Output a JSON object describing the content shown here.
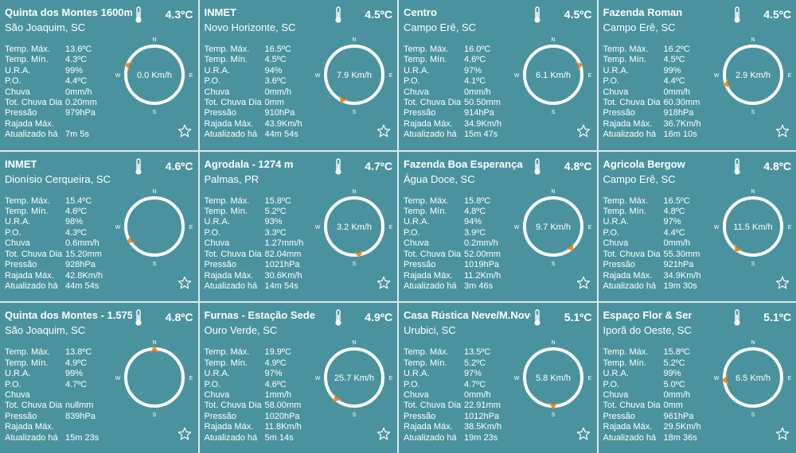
{
  "units": {
    "temp": "ºC"
  },
  "labels": {
    "tmax": "Temp. Máx.",
    "tmin": "Temp. Mín.",
    "ura": "U.R.A.",
    "po": "P.O.",
    "chuva": "Chuva",
    "chuva_dia": "Tot. Chuva Dia",
    "pressao": "Pressão",
    "rajada": "Rajada Máx.",
    "atualizado": "Atualizado há"
  },
  "compass_labels": {
    "n": "N",
    "s": "S",
    "e": "E",
    "w": "W"
  },
  "colors": {
    "card_bg": "#4a939e",
    "needle": "#f08a24"
  },
  "stations": [
    {
      "name": "Quinta dos Montes 1600m",
      "location": "São Joaquim, SC",
      "temp": "4.3",
      "tmax": "13.6ºC",
      "tmin": "4.3ºC",
      "ura": "99%",
      "po": "4.4ºC",
      "chuva": "0mm/h",
      "chuva_dia": "0.20mm",
      "pressao": "979hPa",
      "rajada": "",
      "atualizado": "7m 5s",
      "wind": "0.0 Km/h",
      "wind_dir_deg": 290
    },
    {
      "name": "INMET",
      "location": "Novo Horizonte, SC",
      "temp": "4.5",
      "tmax": "16.5ºC",
      "tmin": "4.5ºC",
      "ura": "94%",
      "po": "3.6ºC",
      "chuva": "0mm/h",
      "chuva_dia": "0mm",
      "pressao": "910hPa",
      "rajada": "43.9Km/h",
      "atualizado": "44m 54s",
      "wind": "7.9 Km/h",
      "wind_dir_deg": 205
    },
    {
      "name": "Centro",
      "location": "Campo Erê, SC",
      "temp": "4.5",
      "tmax": "16.0ºC",
      "tmin": "4.6ºC",
      "ura": "97%",
      "po": "4.1ºC",
      "chuva": "0mm/h",
      "chuva_dia": "50.50mm",
      "pressao": "914hPa",
      "rajada": "34.9Km/h",
      "atualizado": "15m 47s",
      "wind": "6.1 Km/h",
      "wind_dir_deg": 70
    },
    {
      "name": "Fazenda Roman",
      "location": "Campo Erê, SC",
      "temp": "4.5",
      "tmax": "16.2ºC",
      "tmin": "4.5ºC",
      "ura": "99%",
      "po": "4.4ºC",
      "chuva": "0mm/h",
      "chuva_dia": "60.30mm",
      "pressao": "918hPa",
      "rajada": "36.7Km/h",
      "atualizado": "16m 10s",
      "wind": "2.9 Km/h",
      "wind_dir_deg": 250
    },
    {
      "name": "INMET",
      "location": "Dionísio Cerqueira, SC",
      "temp": "4.6",
      "tmax": "15.4ºC",
      "tmin": "4.6ºC",
      "ura": "98%",
      "po": "4.3ºC",
      "chuva": "0.6mm/h",
      "chuva_dia": "15.20mm",
      "pressao": "928hPa",
      "rajada": "42.8Km/h",
      "atualizado": "44m 54s",
      "wind": "",
      "wind_dir_deg": 240
    },
    {
      "name": "Agrodala - 1274 m",
      "location": "Palmas, PR",
      "temp": "4.7",
      "tmax": "15.8ºC",
      "tmin": "5.2ºC",
      "ura": "93%",
      "po": "3.3ºC",
      "chuva": "1.27mm/h",
      "chuva_dia": "82.04mm",
      "pressao": "1021hPa",
      "rajada": "30.6Km/h",
      "atualizado": "14m 54s",
      "wind": "3.2 Km/h",
      "wind_dir_deg": 170
    },
    {
      "name": "Fazenda Boa Esperança",
      "location": "Água Doce, SC",
      "temp": "4.8",
      "tmax": "15.8ºC",
      "tmin": "4.8ºC",
      "ura": "94%",
      "po": "3.9ºC",
      "chuva": "0.2mm/h",
      "chuva_dia": "52.00mm",
      "pressao": "1019hPa",
      "rajada": "11.2Km/h",
      "atualizado": "3m 46s",
      "wind": "9.7 Km/h",
      "wind_dir_deg": 140
    },
    {
      "name": "Agricola Bergow",
      "location": "Campo Erê, SC",
      "temp": "4.8",
      "tmax": "16.5ºC",
      "tmin": "4.8ºC",
      "ura": "97%",
      "po": "4.4ºC",
      "chuva": "0mm/h",
      "chuva_dia": "55.30mm",
      "pressao": "921hPa",
      "rajada": "34.9Km/h",
      "atualizado": "19m 30s",
      "wind": "11.5 Km/h",
      "wind_dir_deg": 215
    },
    {
      "name": "Quinta dos Montes - 1.575",
      "location": "São Joaquim, SC",
      "temp": "4.8",
      "tmax": "13.8ºC",
      "tmin": "4.9ºC",
      "ura": "99%",
      "po": "4.7ºC",
      "chuva": "",
      "chuva_dia": "nullmm",
      "pressao": "839hPa",
      "rajada": "",
      "atualizado": "15m 23s",
      "wind": "",
      "wind_dir_deg": 0
    },
    {
      "name": "Furnas - Estação Sede",
      "location": "Ouro Verde, SC",
      "temp": "4.9",
      "tmax": "19.9ºC",
      "tmin": "4.9ºC",
      "ura": "97%",
      "po": "4.6ºC",
      "chuva": "1mm/h",
      "chuva_dia": "58.00mm",
      "pressao": "1020hPa",
      "rajada": "11.8Km/h",
      "atualizado": "5m 14s",
      "wind": "25.7 Km/h",
      "wind_dir_deg": 220
    },
    {
      "name": "Casa Rústica Neve/M.Novo",
      "location": "Urubici, SC",
      "temp": "5.1",
      "tmax": "13.5ºC",
      "tmin": "5.2ºC",
      "ura": "97%",
      "po": "4.7ºC",
      "chuva": "0mm/h",
      "chuva_dia": "22.91mm",
      "pressao": "1012hPa",
      "rajada": "38.5Km/h",
      "atualizado": "19m 23s",
      "wind": "5.8 Km/h",
      "wind_dir_deg": 180
    },
    {
      "name": "Espaço Flor & Ser",
      "location": "Iporã do Oeste, SC",
      "temp": "5.1",
      "tmax": "15.8ºC",
      "tmin": "5.2ºC",
      "ura": "99%",
      "po": "5.0ºC",
      "chuva": "0mm/h",
      "chuva_dia": "0mm",
      "pressao": "961hPa",
      "rajada": "29.5Km/h",
      "atualizado": "18m 36s",
      "wind": "6.5 Km/h",
      "wind_dir_deg": 265
    }
  ]
}
